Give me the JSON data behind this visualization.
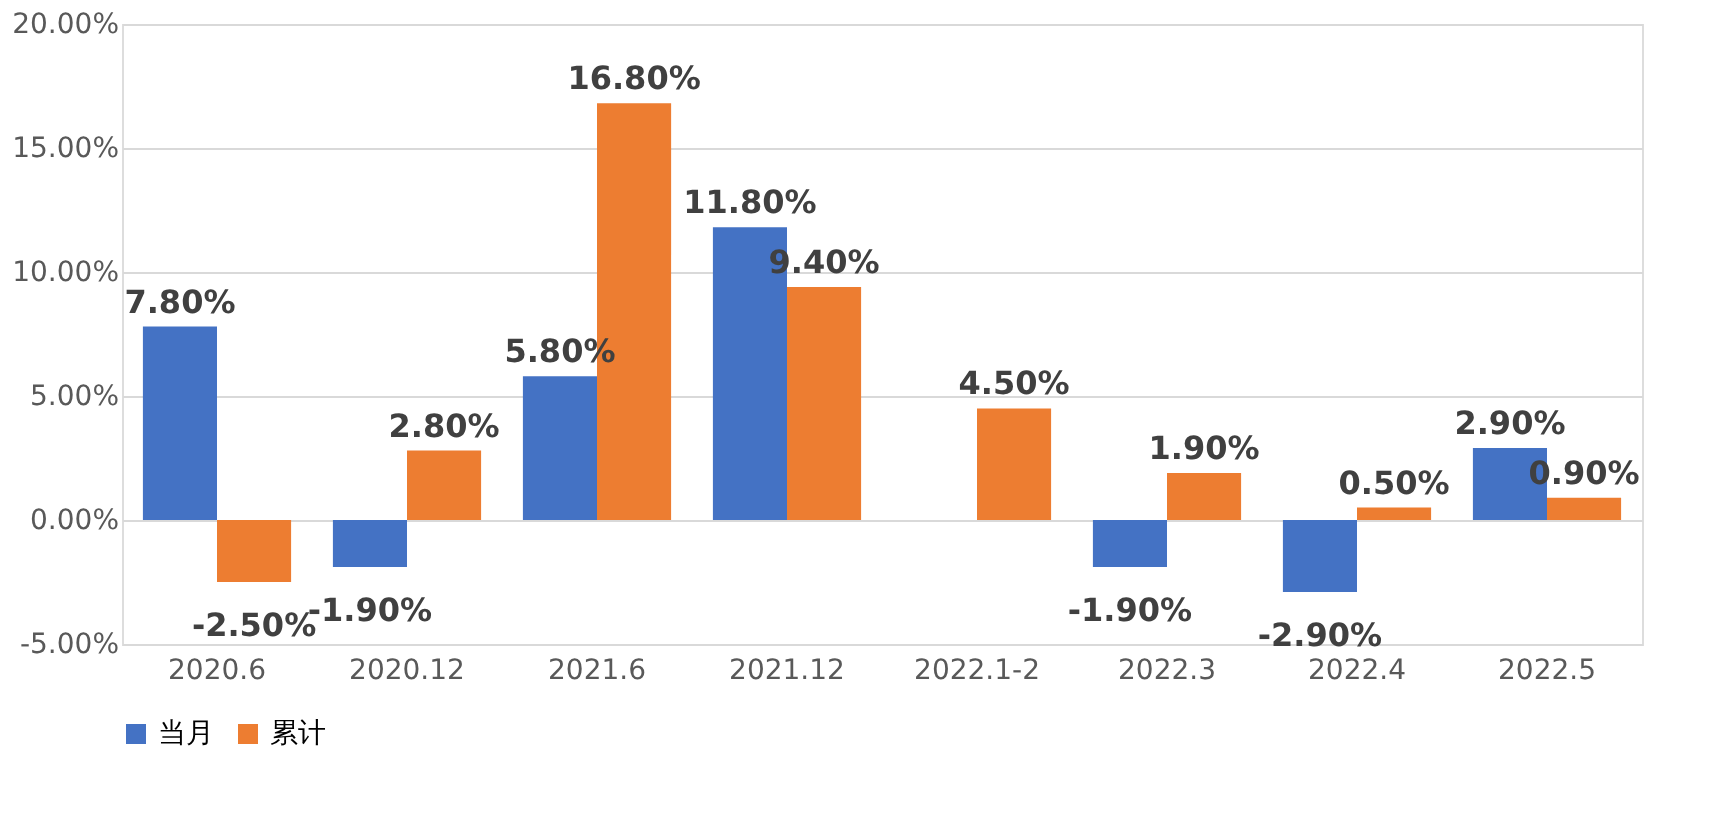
{
  "chart_data": {
    "type": "bar",
    "categories": [
      "2020.6",
      "2020.12",
      "2021.6",
      "2021.12",
      "2022.1-2",
      "2022.3",
      "2022.4",
      "2022.5"
    ],
    "series": [
      {
        "name": "当月",
        "color": "#4472c4",
        "values": [
          7.8,
          -1.9,
          5.8,
          11.8,
          null,
          -1.9,
          -2.9,
          2.9
        ],
        "value_labels": [
          "7.80%",
          "-1.90%",
          "5.80%",
          "11.80%",
          null,
          "-1.90%",
          "-2.90%",
          "2.90%"
        ]
      },
      {
        "name": "累计",
        "color": "#ed7d31",
        "values": [
          -2.5,
          2.8,
          16.8,
          9.4,
          4.5,
          1.9,
          0.5,
          0.9
        ],
        "value_labels": [
          "-2.50%",
          "2.80%",
          "16.80%",
          "9.40%",
          "4.50%",
          "1.90%",
          "0.50%",
          "0.90%"
        ]
      }
    ],
    "ylim": [
      -5,
      20
    ],
    "yticks": [
      {
        "value": -5,
        "label": "-5.00%"
      },
      {
        "value": 0,
        "label": "0.00%"
      },
      {
        "value": 5,
        "label": "5.00%"
      },
      {
        "value": 10,
        "label": "10.00%"
      },
      {
        "value": 15,
        "label": "15.00%"
      },
      {
        "value": 20,
        "label": "20.00%"
      }
    ],
    "grid": "y",
    "legend": "bottom"
  }
}
